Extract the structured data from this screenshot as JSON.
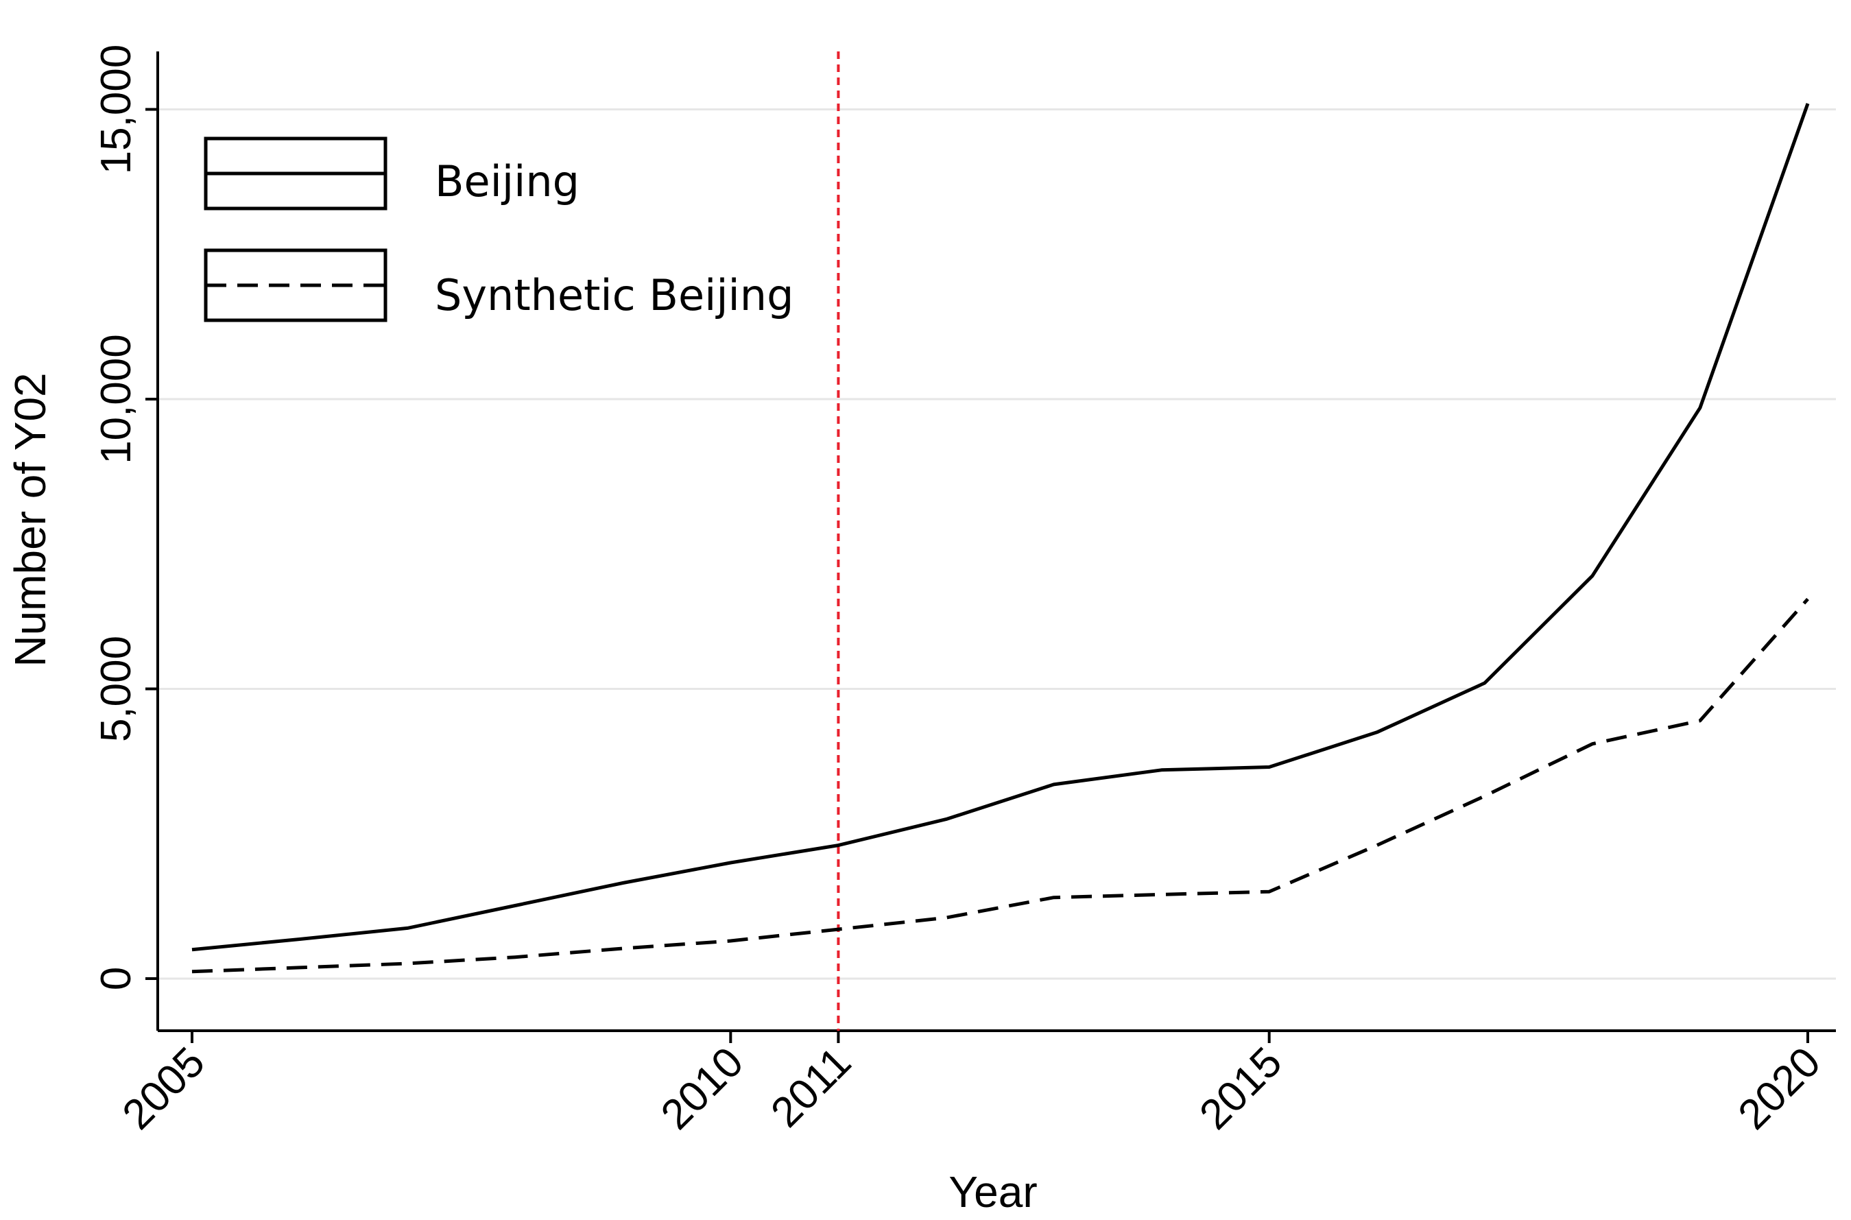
{
  "chart_data": {
    "type": "line",
    "title": "",
    "xlabel": "Year",
    "ylabel": "Number of Y02",
    "xlim": [
      2005,
      2020
    ],
    "ylim": [
      -900,
      16000
    ],
    "x_ticks": [
      2005,
      2010,
      2011,
      2015,
      2020
    ],
    "x_tick_labels": [
      "2005",
      "2010",
      "2011",
      "2015",
      "2020"
    ],
    "y_ticks": [
      0,
      5000,
      10000,
      15000
    ],
    "y_tick_labels": [
      "0",
      "5,000",
      "10,000",
      "15,000"
    ],
    "grid": "horizontal",
    "x": [
      2005,
      2006,
      2007,
      2008,
      2009,
      2010,
      2011,
      2012,
      2013,
      2014,
      2015,
      2016,
      2017,
      2018,
      2019,
      2020
    ],
    "series": [
      {
        "name": "Beijing",
        "style": "solid",
        "color": "#000000",
        "values": [
          500,
          680,
          870,
          1260,
          1650,
          2000,
          2300,
          2750,
          3350,
          3600,
          3650,
          4250,
          5100,
          6950,
          9850,
          15100
        ]
      },
      {
        "name": "Synthetic Beijing",
        "style": "dashed",
        "color": "#000000",
        "values": [
          120,
          190,
          260,
          370,
          520,
          650,
          850,
          1050,
          1400,
          1450,
          1500,
          2300,
          3150,
          4050,
          4450,
          6550
        ]
      }
    ],
    "reference_line": {
      "x": 2011,
      "style": "dotted",
      "color": "#e8212e"
    },
    "legend": {
      "placement": "top-left"
    }
  }
}
